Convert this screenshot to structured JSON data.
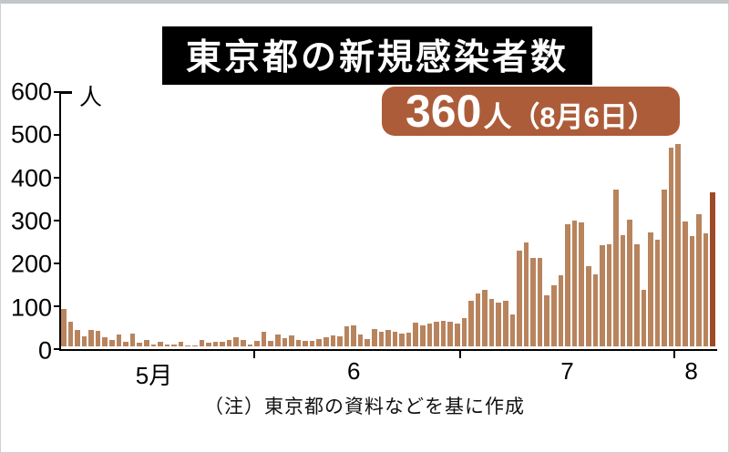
{
  "title": "東京都の新規感染者数",
  "badge": {
    "number": "360",
    "suffix": "人（8月6日）"
  },
  "unit_label": "人",
  "note": "（注）東京都の資料などを基に作成",
  "colors": {
    "bar": "#b8845e",
    "bar_highlight": "#9e4a26",
    "badge_bg": "#ad5c39",
    "title_bg": "#000000",
    "axis": "#000000"
  },
  "chart_data": {
    "type": "bar",
    "title": "東京都の新規感染者数",
    "ylabel": "人",
    "ylim": [
      0,
      600
    ],
    "yticks": [
      0,
      100,
      200,
      300,
      400,
      500,
      600
    ],
    "grid": false,
    "annotation": "360人（8月6日）",
    "annotation_target": "last-bar",
    "x_labels": [
      {
        "label": "5月",
        "index": 13
      },
      {
        "label": "6",
        "index": 42
      },
      {
        "label": "7",
        "index": 73
      },
      {
        "label": "8",
        "index": 91
      }
    ],
    "month_boundary_ticks": [
      28,
      58,
      89
    ],
    "highlight_last": true,
    "values": [
      87,
      58,
      38,
      23,
      39,
      36,
      22,
      15,
      28,
      10,
      30,
      9,
      14,
      5,
      10,
      5,
      5,
      11,
      3,
      2,
      14,
      8,
      10,
      11,
      15,
      22,
      14,
      5,
      13,
      34,
      12,
      28,
      20,
      26,
      14,
      13,
      12,
      18,
      22,
      25,
      24,
      47,
      48,
      27,
      16,
      41,
      35,
      39,
      35,
      29,
      31,
      55,
      48,
      54,
      57,
      60,
      58,
      54,
      67,
      107,
      124,
      131,
      111,
      102,
      106,
      75,
      224,
      243,
      206,
      206,
      119,
      143,
      165,
      286,
      293,
      290,
      188,
      168,
      237,
      238,
      366,
      260,
      295,
      239,
      131,
      266,
      250,
      367,
      463,
      472,
      292,
      258,
      309,
      263,
      360
    ]
  }
}
